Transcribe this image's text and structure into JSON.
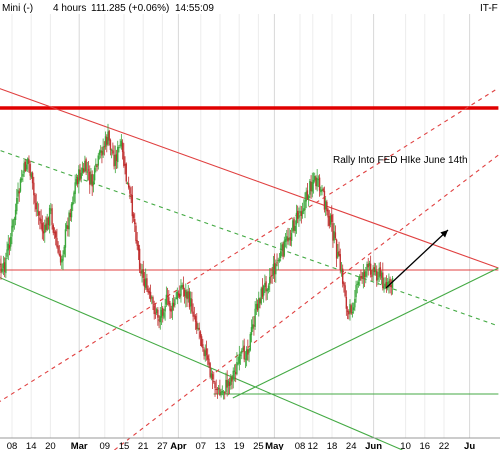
{
  "header": {
    "instrument": "Mini (-)",
    "interval": "4 hours",
    "quote": "111.285 (+0.06%)",
    "time": "14:55:09",
    "right_label": "IT-F"
  },
  "chart_data": {
    "type": "candlestick",
    "x_axis": {
      "ticks": [
        {
          "label": "08",
          "day": 8,
          "month": false
        },
        {
          "label": "14",
          "day": 14,
          "month": false
        },
        {
          "label": "20",
          "day": 20,
          "month": false
        },
        {
          "label": "Mar",
          "day": 29,
          "month": true
        },
        {
          "label": "09",
          "day": 37,
          "month": false
        },
        {
          "label": "15",
          "day": 43,
          "month": false
        },
        {
          "label": "21",
          "day": 49,
          "month": false
        },
        {
          "label": "27",
          "day": 55,
          "month": false
        },
        {
          "label": "Apr",
          "day": 60,
          "month": true
        },
        {
          "label": "07",
          "day": 67,
          "month": false
        },
        {
          "label": "13",
          "day": 73,
          "month": false
        },
        {
          "label": "19",
          "day": 79,
          "month": false
        },
        {
          "label": "25",
          "day": 85,
          "month": false
        },
        {
          "label": "May",
          "day": 90,
          "month": true
        },
        {
          "label": "08",
          "day": 98,
          "month": false
        },
        {
          "label": "12",
          "day": 102,
          "month": false
        },
        {
          "label": "18",
          "day": 108,
          "month": false
        },
        {
          "label": "24",
          "day": 114,
          "month": false
        },
        {
          "label": "Jun",
          "day": 121,
          "month": true
        },
        {
          "label": "10",
          "day": 131,
          "month": false
        },
        {
          "label": "16",
          "day": 137,
          "month": false
        },
        {
          "label": "22",
          "day": 143,
          "month": false
        },
        {
          "label": "Ju",
          "day": 151,
          "month": true
        }
      ]
    },
    "price_path": [
      [
        0,
        213
      ],
      [
        3,
        258
      ],
      [
        5,
        275
      ],
      [
        8,
        230
      ],
      [
        11,
        178
      ],
      [
        13,
        158
      ],
      [
        15,
        200
      ],
      [
        18,
        235
      ],
      [
        20,
        210
      ],
      [
        23,
        265
      ],
      [
        25,
        230
      ],
      [
        28,
        180
      ],
      [
        31,
        168
      ],
      [
        33,
        185
      ],
      [
        36,
        150
      ],
      [
        38,
        138
      ],
      [
        40,
        160
      ],
      [
        42,
        145
      ],
      [
        44,
        185
      ],
      [
        46,
        215
      ],
      [
        48,
        265
      ],
      [
        51,
        300
      ],
      [
        54,
        318
      ],
      [
        56,
        300
      ],
      [
        58,
        310
      ],
      [
        61,
        285
      ],
      [
        64,
        305
      ],
      [
        67,
        335
      ],
      [
        70,
        375
      ],
      [
        73,
        395
      ],
      [
        76,
        380
      ],
      [
        79,
        362
      ],
      [
        82,
        345
      ],
      [
        85,
        300
      ],
      [
        88,
        280
      ],
      [
        91,
        262
      ],
      [
        94,
        240
      ],
      [
        97,
        218
      ],
      [
        100,
        198
      ],
      [
        102,
        178
      ],
      [
        104,
        188
      ],
      [
        106,
        205
      ],
      [
        108,
        228
      ],
      [
        110,
        260
      ],
      [
        112,
        290
      ],
      [
        113,
        318
      ],
      [
        115,
        298
      ],
      [
        117,
        275
      ],
      [
        120,
        268
      ],
      [
        123,
        275
      ],
      [
        125,
        288
      ],
      [
        127,
        285
      ]
    ],
    "trend_lines": [
      {
        "name": "resistance-horizontal",
        "color": "#e00000",
        "style": "solid",
        "weight": "heavy",
        "p1": [
          -5,
          108
        ],
        "p2": [
          160,
          108
        ]
      },
      {
        "name": "mid-horizontal",
        "color": "#e04040",
        "style": "solid",
        "weight": "thin",
        "p1": [
          -5,
          270
        ],
        "p2": [
          160,
          270
        ]
      },
      {
        "name": "down-channel-upper",
        "color": "#e04040",
        "style": "solid",
        "weight": "thin",
        "p1": [
          -5,
          78
        ],
        "p2": [
          160,
          268
        ]
      },
      {
        "name": "down-channel-green-upper",
        "color": "#44aa44",
        "style": "dashed",
        "weight": "thin",
        "p1": [
          -5,
          140
        ],
        "p2": [
          160,
          326
        ]
      },
      {
        "name": "down-channel-green-lower",
        "color": "#44aa44",
        "style": "solid",
        "weight": "thin",
        "p1": [
          -5,
          265
        ],
        "p2": [
          130,
          450
        ]
      },
      {
        "name": "up-channel-red-dashed-1",
        "color": "#e04040",
        "style": "dashed",
        "weight": "thin",
        "p1": [
          -5,
          420
        ],
        "p2": [
          160,
          88
        ]
      },
      {
        "name": "up-channel-red-dashed-2",
        "color": "#e04040",
        "style": "dashed",
        "weight": "thin",
        "p1": [
          40,
          450
        ],
        "p2": [
          160,
          155
        ]
      },
      {
        "name": "support-up-green",
        "color": "#44aa44",
        "style": "solid",
        "weight": "thin",
        "p1": [
          77,
          398
        ],
        "p2": [
          160,
          268
        ]
      },
      {
        "name": "support-horizontal-green",
        "color": "#44aa44",
        "style": "solid",
        "weight": "thin",
        "p1": [
          71,
          394
        ],
        "p2": [
          160,
          394
        ]
      }
    ],
    "annotations": [
      {
        "text": "Rally Into FED HIke June 14th",
        "x": 333,
        "y": 163
      }
    ],
    "arrow": {
      "from": [
        386,
        288
      ],
      "to": [
        448,
        230
      ],
      "color": "#000000"
    }
  }
}
